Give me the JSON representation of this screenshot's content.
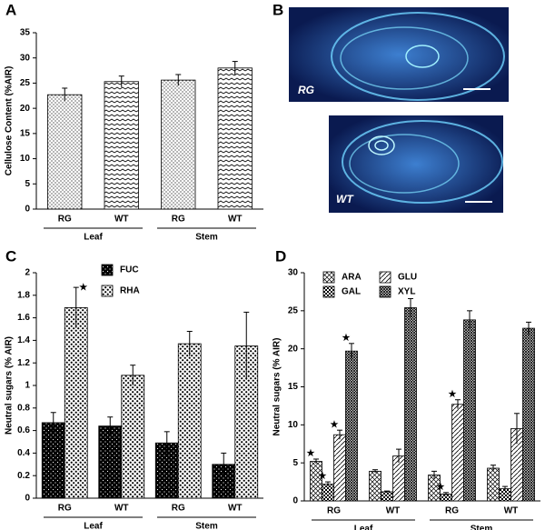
{
  "image_panel": {
    "panel_label": "B",
    "captions": [
      "RG",
      "WT"
    ]
  },
  "chart_data": [
    {
      "type": "bar",
      "panel_label": "A",
      "y_label": "Cellulose Content (%AIR)",
      "categories": [
        "RG",
        "WT",
        "RG",
        "WT"
      ],
      "groups": [
        "Leaf",
        "Stem"
      ],
      "values": [
        22.7,
        25.3,
        25.6,
        28.0
      ],
      "errors": [
        1.3,
        1.1,
        1.1,
        1.3
      ],
      "patterns": [
        "dots",
        "zigzag",
        "dots",
        "zigzag"
      ],
      "ylim": [
        0,
        35
      ],
      "yticks": [
        0,
        5,
        10,
        15,
        20,
        25,
        30,
        35
      ]
    },
    {
      "type": "bar",
      "panel_label": "C",
      "y_label": "Neutral sugars (% AIR)",
      "categories": [
        "RG",
        "WT",
        "RG",
        "WT"
      ],
      "groups": [
        "Leaf",
        "Stem"
      ],
      "series": [
        {
          "name": "FUC",
          "pattern": "darkdots",
          "values": [
            0.67,
            0.64,
            0.49,
            0.3
          ],
          "errors": [
            0.09,
            0.08,
            0.1,
            0.1
          ],
          "markers": [
            null,
            null,
            null,
            null
          ]
        },
        {
          "name": "RHA",
          "pattern": "bigdots",
          "values": [
            1.69,
            1.09,
            1.37,
            1.35
          ],
          "errors": [
            0.18,
            0.09,
            0.11,
            0.3
          ],
          "markers": [
            "★",
            null,
            null,
            null
          ]
        }
      ],
      "ylim": [
        0,
        2
      ],
      "yticks": [
        0,
        0.2,
        0.4,
        0.6,
        0.8,
        1,
        1.2,
        1.4,
        1.6,
        1.8,
        2
      ]
    },
    {
      "type": "bar",
      "panel_label": "D",
      "y_label": "Neutral sugars (% AIR)",
      "categories": [
        "RG",
        "WT",
        "RG",
        "WT"
      ],
      "groups": [
        "Leaf",
        "Stem"
      ],
      "series": [
        {
          "name": "ARA",
          "pattern": "cross",
          "values": [
            5.2,
            3.9,
            3.4,
            4.3
          ],
          "errors": [
            0.3,
            0.2,
            0.5,
            0.4
          ],
          "markers": [
            "★",
            null,
            null,
            null
          ]
        },
        {
          "name": "GAL",
          "pattern": "checker",
          "values": [
            2.2,
            1.2,
            0.9,
            1.6
          ],
          "errors": [
            0.3,
            0.1,
            0.2,
            0.3
          ],
          "markers": [
            "★",
            null,
            "★",
            null
          ]
        },
        {
          "name": "GLU",
          "pattern": "diag",
          "values": [
            8.7,
            5.9,
            12.7,
            9.5
          ],
          "errors": [
            0.6,
            0.9,
            0.6,
            2.0
          ],
          "markers": [
            "★",
            null,
            "★",
            null
          ]
        },
        {
          "name": "XYL",
          "pattern": "dense",
          "values": [
            19.7,
            25.4,
            23.8,
            22.7
          ],
          "errors": [
            1.0,
            1.2,
            1.2,
            0.8
          ],
          "markers": [
            "★",
            null,
            null,
            null
          ]
        }
      ],
      "ylim": [
        0,
        30
      ],
      "yticks": [
        0,
        5,
        10,
        15,
        20,
        25,
        30
      ]
    }
  ]
}
